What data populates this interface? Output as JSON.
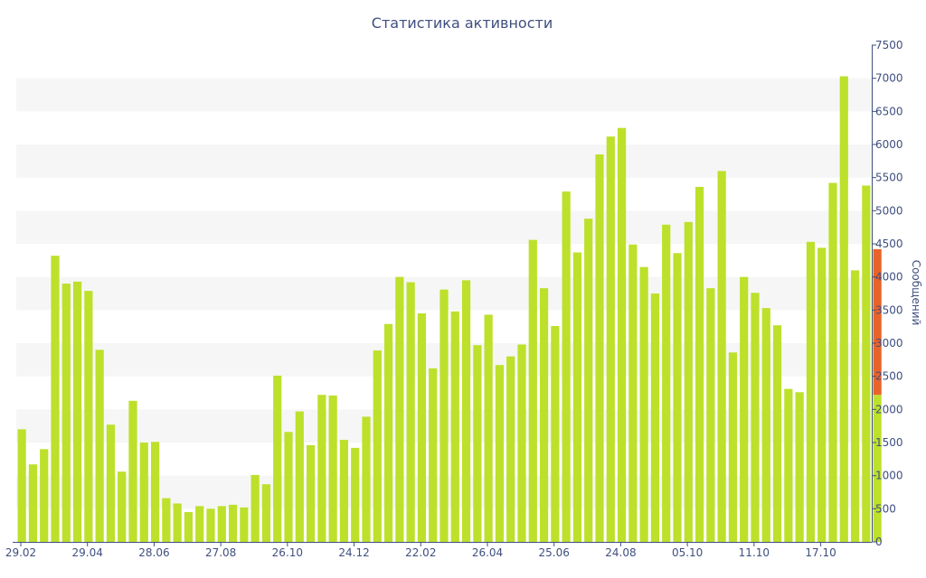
{
  "colors": {
    "bar": "#bde02b",
    "highlight": "#e8632a",
    "band": "#f6f6f6",
    "axis": "#3f4f7f"
  },
  "chart_data": {
    "type": "bar",
    "title": "Статистика активности",
    "xlabel": "",
    "ylabel": "Сообщений",
    "ylim": [
      0,
      7500
    ],
    "yticks": [
      0,
      500,
      1000,
      1500,
      2000,
      2500,
      3000,
      3500,
      4000,
      4500,
      5000,
      5500,
      6000,
      6500,
      7000,
      7500
    ],
    "y_axis_side": "right",
    "x_tick_labels": [
      {
        "label": "29.02",
        "index": 0
      },
      {
        "label": "29.04",
        "index": 6
      },
      {
        "label": "28.06",
        "index": 12
      },
      {
        "label": "27.08",
        "index": 18
      },
      {
        "label": "26.10",
        "index": 24
      },
      {
        "label": "24.12",
        "index": 30
      },
      {
        "label": "22.02",
        "index": 36
      },
      {
        "label": "26.04",
        "index": 42
      },
      {
        "label": "25.06",
        "index": 48
      },
      {
        "label": "24.08",
        "index": 54
      },
      {
        "label": "05.10",
        "index": 60
      },
      {
        "label": "11.10",
        "index": 66
      },
      {
        "label": "17.10",
        "index": 72
      }
    ],
    "values": [
      1700,
      1170,
      1400,
      4320,
      3900,
      3930,
      3790,
      2900,
      1770,
      1060,
      2130,
      1500,
      1510,
      660,
      580,
      450,
      540,
      500,
      540,
      560,
      520,
      1010,
      870,
      2510,
      1660,
      1970,
      1460,
      2220,
      2210,
      1540,
      1420,
      1890,
      2890,
      3290,
      4000,
      3920,
      3450,
      2620,
      3810,
      3480,
      3950,
      2970,
      3430,
      2670,
      2800,
      2980,
      4560,
      3830,
      3260,
      5290,
      4370,
      4880,
      5850,
      6120,
      6250,
      4490,
      4150,
      3750,
      4790,
      4360,
      4830,
      5360,
      3830,
      5600,
      2860,
      4000,
      3760,
      3530,
      3270,
      2310,
      2260,
      4530,
      4440,
      5420,
      7030,
      4100,
      5380
    ],
    "last_bar": {
      "total": 4420,
      "highlight_from": 2220
    }
  }
}
